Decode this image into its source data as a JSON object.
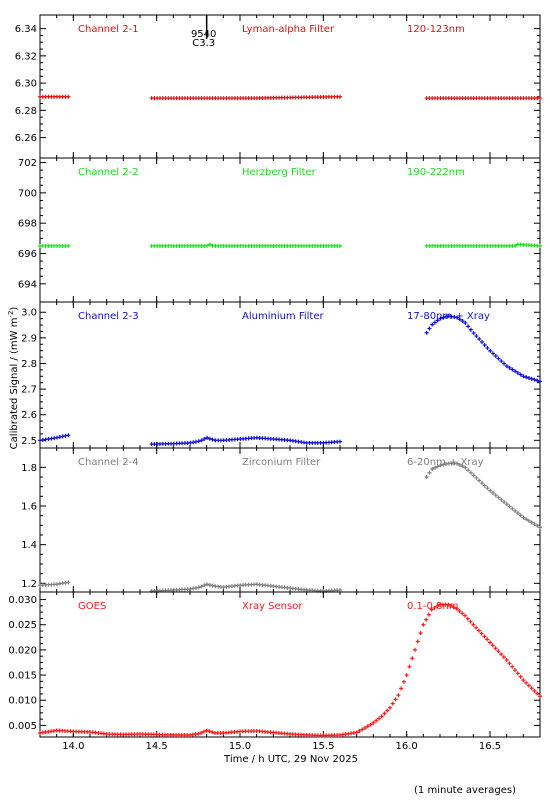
{
  "figure": {
    "xlabel": "Time / h UTC, 29 Nov 2025",
    "ylabel": "Calibrated Signal / (mW m",
    "ylabel_sup": "-2",
    "ylabel_end": ")",
    "footnote": "(1 minute averages)",
    "flare_marker": {
      "time": 14.8,
      "label_top": "9540",
      "label_bottom": "C3.3"
    }
  },
  "chart_data": [
    {
      "type": "scatter",
      "name": "Channel 2-1",
      "labels": [
        "Channel 2-1",
        "Lyman-alpha Filter",
        "120-123nm"
      ],
      "color": "#e01010",
      "xlim": [
        13.8,
        16.8
      ],
      "ylim": [
        6.245,
        6.35
      ],
      "yticks": [
        6.26,
        6.28,
        6.3,
        6.32,
        6.34
      ],
      "ytick_labels": [
        "6.26",
        "6.28",
        "6.30",
        "6.32",
        "6.34"
      ],
      "segments": [
        {
          "x": [
            13.8,
            13.97
          ],
          "y": [
            6.29,
            6.29
          ]
        },
        {
          "x": [
            14.47,
            15.1,
            15.6
          ],
          "y": [
            6.289,
            6.289,
            6.29
          ]
        },
        {
          "x": [
            16.12,
            16.8
          ],
          "y": [
            6.289,
            6.289
          ]
        }
      ]
    },
    {
      "type": "scatter",
      "name": "Channel 2-2",
      "labels": [
        "Channel 2-2",
        "Herzberg Filter",
        "190-222nm"
      ],
      "color": "#18e018",
      "xlim": [
        13.8,
        16.8
      ],
      "ylim": [
        692.8,
        702.3
      ],
      "yticks": [
        694,
        696,
        698,
        700,
        702
      ],
      "ytick_labels": [
        "694",
        "696",
        "698",
        "700",
        "702"
      ],
      "segments": [
        {
          "x": [
            13.8,
            13.97
          ],
          "y": [
            696.5,
            696.5
          ]
        },
        {
          "x": [
            14.47,
            14.8,
            14.82,
            14.84,
            15.6
          ],
          "y": [
            696.5,
            696.5,
            696.6,
            696.5,
            696.5
          ]
        },
        {
          "x": [
            16.12,
            16.65,
            16.67,
            16.8
          ],
          "y": [
            696.5,
            696.5,
            696.6,
            696.5
          ]
        }
      ]
    },
    {
      "type": "scatter",
      "name": "Channel 2-3",
      "labels": [
        "Channel 2-3",
        "Aluminium Filter",
        "17-80nm + Xray"
      ],
      "color": "#1010d8",
      "xlim": [
        13.8,
        16.8
      ],
      "ylim": [
        2.47,
        3.04
      ],
      "yticks": [
        2.5,
        2.6,
        2.7,
        2.8,
        2.9,
        3.0
      ],
      "ytick_labels": [
        "2.5",
        "2.6",
        "2.7",
        "2.8",
        "2.9",
        "3.0"
      ],
      "segments": [
        {
          "x": [
            13.8,
            13.85,
            13.9,
            13.97
          ],
          "y": [
            2.5,
            2.505,
            2.51,
            2.52
          ]
        },
        {
          "x": [
            14.47,
            14.6,
            14.7,
            14.76,
            14.8,
            14.85,
            14.9,
            15.0,
            15.1,
            15.2,
            15.3,
            15.4,
            15.5,
            15.6
          ],
          "y": [
            2.485,
            2.487,
            2.49,
            2.497,
            2.51,
            2.5,
            2.5,
            2.505,
            2.51,
            2.505,
            2.5,
            2.49,
            2.49,
            2.495
          ]
        },
        {
          "x": [
            16.12,
            16.15,
            16.2,
            16.25,
            16.3,
            16.35,
            16.4,
            16.5,
            16.6,
            16.7,
            16.8
          ],
          "y": [
            2.92,
            2.95,
            2.975,
            2.985,
            2.98,
            2.96,
            2.92,
            2.85,
            2.79,
            2.75,
            2.73
          ]
        }
      ]
    },
    {
      "type": "scatter",
      "name": "Channel 2-4",
      "labels": [
        "Channel 2-4",
        "Zirconium Filter",
        "6-20nm + Xray"
      ],
      "color": "#808080",
      "xlim": [
        13.8,
        16.8
      ],
      "ylim": [
        1.155,
        1.9
      ],
      "yticks": [
        1.2,
        1.4,
        1.6,
        1.8
      ],
      "ytick_labels": [
        "1.2",
        "1.4",
        "1.6",
        "1.8"
      ],
      "segments": [
        {
          "x": [
            13.8,
            13.9,
            13.97
          ],
          "y": [
            1.19,
            1.195,
            1.205
          ]
        },
        {
          "x": [
            14.47,
            14.6,
            14.7,
            14.76,
            14.8,
            14.85,
            14.9,
            15.0,
            15.1,
            15.2,
            15.3,
            15.4,
            15.5,
            15.6
          ],
          "y": [
            1.16,
            1.165,
            1.17,
            1.18,
            1.195,
            1.185,
            1.18,
            1.19,
            1.195,
            1.185,
            1.175,
            1.165,
            1.16,
            1.165
          ]
        },
        {
          "x": [
            16.12,
            16.15,
            16.2,
            16.25,
            16.3,
            16.35,
            16.4,
            16.5,
            16.6,
            16.7,
            16.8
          ],
          "y": [
            1.75,
            1.79,
            1.81,
            1.82,
            1.82,
            1.8,
            1.76,
            1.68,
            1.61,
            1.54,
            1.49
          ]
        }
      ]
    },
    {
      "type": "scatter",
      "name": "GOES",
      "labels": [
        "GOES",
        "Xray Sensor",
        "0.1-0.8nm"
      ],
      "color": "#ff1818",
      "xlim": [
        13.8,
        16.8
      ],
      "ylim": [
        0.0027,
        0.0315
      ],
      "yticks": [
        0.005,
        0.01,
        0.015,
        0.02,
        0.025,
        0.03
      ],
      "ytick_labels": [
        "0.005",
        "0.010",
        "0.015",
        "0.020",
        "0.025",
        "0.030"
      ],
      "xticks": [
        14.0,
        14.5,
        15.0,
        15.5,
        16.0,
        16.5
      ],
      "xtick_labels": [
        "14.0",
        "14.5",
        "15.0",
        "15.5",
        "16.0",
        "16.5"
      ],
      "segments": [
        {
          "x": [
            13.8,
            13.9,
            14.0,
            14.1,
            14.2,
            14.3,
            14.4,
            14.5,
            14.6,
            14.7,
            14.76,
            14.8,
            14.85,
            14.9,
            15.0,
            15.1,
            15.2,
            15.3,
            15.4,
            15.5,
            15.6,
            15.7,
            15.75,
            15.8,
            15.85,
            15.9,
            15.95,
            16.0,
            16.05,
            16.1,
            16.15,
            16.2,
            16.25,
            16.3,
            16.35,
            16.4,
            16.5,
            16.6,
            16.7,
            16.8
          ],
          "y": [
            0.0035,
            0.004,
            0.0038,
            0.0037,
            0.0033,
            0.0032,
            0.0033,
            0.0032,
            0.0031,
            0.0031,
            0.0034,
            0.004,
            0.0035,
            0.0035,
            0.0038,
            0.0039,
            0.0036,
            0.0033,
            0.0031,
            0.003,
            0.0031,
            0.0036,
            0.0045,
            0.0055,
            0.0068,
            0.0085,
            0.011,
            0.015,
            0.02,
            0.025,
            0.028,
            0.029,
            0.029,
            0.0282,
            0.0268,
            0.025,
            0.0215,
            0.018,
            0.014,
            0.0108
          ]
        }
      ]
    }
  ]
}
